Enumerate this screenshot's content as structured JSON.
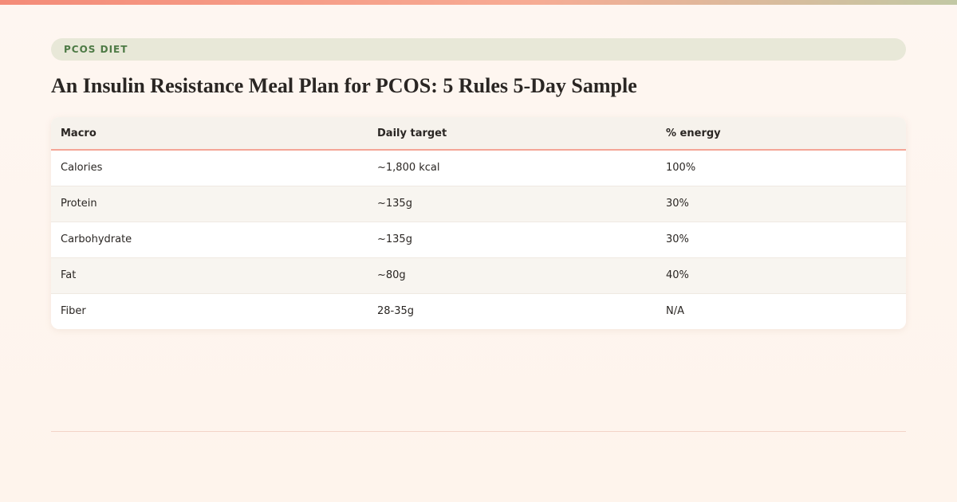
{
  "category": "PCOS DIET",
  "title": "An Insulin Resistance Meal Plan for PCOS: 5 Rules 5-Day Sample",
  "table": {
    "headers": [
      "Macro",
      "Daily target",
      "% energy"
    ],
    "rows": [
      [
        "Calories",
        "~1,800 kcal",
        "100%"
      ],
      [
        "Protein",
        "~135g",
        "30%"
      ],
      [
        "Carbohydrate",
        "~135g",
        "30%"
      ],
      [
        "Fat",
        "~80g",
        "40%"
      ],
      [
        "Fiber",
        "28-35g",
        "N/A"
      ]
    ]
  },
  "colors": {
    "accent": "#f48b78",
    "category_text": "#4d7a45",
    "category_bg": "#e8e8d8",
    "header_rule": "#f4a596"
  }
}
